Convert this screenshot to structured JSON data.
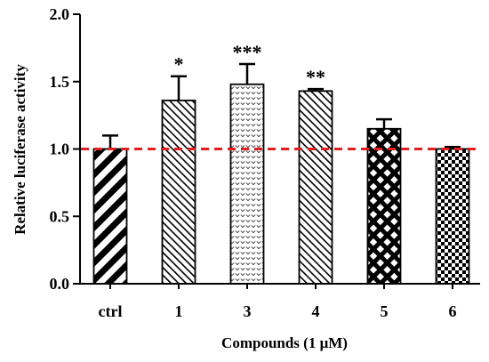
{
  "chart_data": {
    "type": "bar",
    "categories": [
      "ctrl",
      "1",
      "3",
      "4",
      "5",
      "6"
    ],
    "values": [
      1.0,
      1.36,
      1.48,
      1.43,
      1.15,
      1.0
    ],
    "errors": [
      0.1,
      0.18,
      0.15,
      0.015,
      0.07,
      0.015
    ],
    "significance": [
      "",
      "*",
      "***",
      "**",
      "",
      ""
    ],
    "patterns": [
      "wide-diagonal-stripes",
      "fine-diagonal-stripes",
      "dotted-chevrons",
      "fine-diagonal-stripes",
      "crosshatch",
      "checkerboard"
    ],
    "xlabel": "Compounds (1 μM)",
    "ylabel": "Relative luciferase activity",
    "ylim": [
      0.0,
      2.0
    ],
    "yticks": [
      "0.0",
      "0.5",
      "1.0",
      "1.5",
      "2.0"
    ],
    "reference_line": {
      "y": 1.0,
      "color": "#e02020",
      "style": "dashed"
    },
    "grid": false
  }
}
